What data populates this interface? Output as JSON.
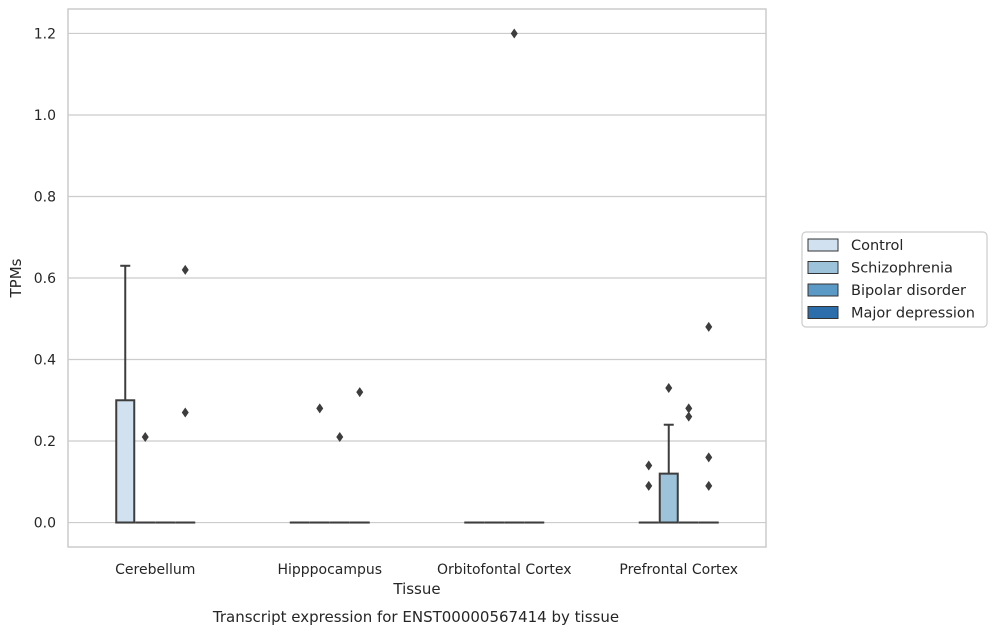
{
  "chart_data": {
    "type": "box",
    "title": "Transcript expression for ENST00000567414 by tissue",
    "xlabel": "Tissue",
    "ylabel": "TPMs",
    "ylim": [
      -0.06,
      1.26
    ],
    "yticks": [
      0.0,
      0.2,
      0.4,
      0.6,
      0.8,
      1.0,
      1.2
    ],
    "ytick_labels": [
      "0.0",
      "0.2",
      "0.4",
      "0.6",
      "0.8",
      "1.0",
      "1.2"
    ],
    "grid": true,
    "legend_position": "right",
    "categories": [
      "Cerebellum",
      "Hipppocampus",
      "Orbitofontal Cortex",
      "Prefrontal Cortex"
    ],
    "series": [
      {
        "name": "Control",
        "color": "#d1e1f0",
        "boxes": [
          {
            "q1": 0.0,
            "median": 0.0,
            "q3": 0.3,
            "whisker_low": 0.0,
            "whisker_high": 0.63,
            "outliers": []
          },
          {
            "q1": 0.0,
            "median": 0.0,
            "q3": 0.0,
            "whisker_low": 0.0,
            "whisker_high": 0.0,
            "outliers": []
          },
          {
            "q1": 0.0,
            "median": 0.0,
            "q3": 0.0,
            "whisker_low": 0.0,
            "whisker_high": 0.0,
            "outliers": []
          },
          {
            "q1": 0.0,
            "median": 0.0,
            "q3": 0.0,
            "whisker_low": 0.0,
            "whisker_high": 0.0,
            "outliers": [
              0.14,
              0.09
            ]
          }
        ]
      },
      {
        "name": "Schizophrenia",
        "color": "#9cc3da",
        "boxes": [
          {
            "q1": 0.0,
            "median": 0.0,
            "q3": 0.0,
            "whisker_low": 0.0,
            "whisker_high": 0.0,
            "outliers": [
              0.21
            ]
          },
          {
            "q1": 0.0,
            "median": 0.0,
            "q3": 0.0,
            "whisker_low": 0.0,
            "whisker_high": 0.0,
            "outliers": [
              0.28
            ]
          },
          {
            "q1": 0.0,
            "median": 0.0,
            "q3": 0.0,
            "whisker_low": 0.0,
            "whisker_high": 0.0,
            "outliers": []
          },
          {
            "q1": 0.0,
            "median": 0.0,
            "q3": 0.12,
            "whisker_low": 0.0,
            "whisker_high": 0.24,
            "outliers": [
              0.33
            ]
          }
        ]
      },
      {
        "name": "Bipolar disorder",
        "color": "#5b9ac6",
        "boxes": [
          {
            "q1": 0.0,
            "median": 0.0,
            "q3": 0.0,
            "whisker_low": 0.0,
            "whisker_high": 0.0,
            "outliers": []
          },
          {
            "q1": 0.0,
            "median": 0.0,
            "q3": 0.0,
            "whisker_low": 0.0,
            "whisker_high": 0.0,
            "outliers": [
              0.21
            ]
          },
          {
            "q1": 0.0,
            "median": 0.0,
            "q3": 0.0,
            "whisker_low": 0.0,
            "whisker_high": 0.0,
            "outliers": [
              1.2
            ]
          },
          {
            "q1": 0.0,
            "median": 0.0,
            "q3": 0.0,
            "whisker_low": 0.0,
            "whisker_high": 0.0,
            "outliers": [
              0.28,
              0.26
            ]
          }
        ]
      },
      {
        "name": "Major depression",
        "color": "#2c6eac",
        "boxes": [
          {
            "q1": 0.0,
            "median": 0.0,
            "q3": 0.0,
            "whisker_low": 0.0,
            "whisker_high": 0.0,
            "outliers": [
              0.62,
              0.27
            ]
          },
          {
            "q1": 0.0,
            "median": 0.0,
            "q3": 0.0,
            "whisker_low": 0.0,
            "whisker_high": 0.0,
            "outliers": [
              0.32
            ]
          },
          {
            "q1": 0.0,
            "median": 0.0,
            "q3": 0.0,
            "whisker_low": 0.0,
            "whisker_high": 0.0,
            "outliers": []
          },
          {
            "q1": 0.0,
            "median": 0.0,
            "q3": 0.0,
            "whisker_low": 0.0,
            "whisker_high": 0.0,
            "outliers": [
              0.48,
              0.16,
              0.09
            ]
          }
        ]
      }
    ]
  }
}
